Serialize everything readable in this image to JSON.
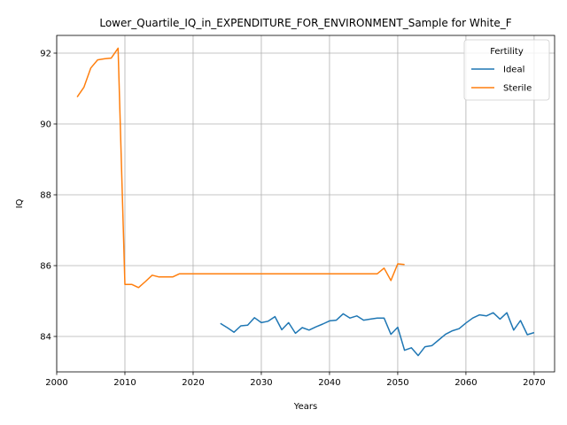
{
  "chart_data": {
    "type": "line",
    "title": "Lower_Quartile_IQ_in_EXPENDITURE_FOR_ENVIRONMENT_Sample for White_F",
    "xlabel": "Years",
    "ylabel": "IQ",
    "xlim": [
      2000,
      2073
    ],
    "ylim": [
      83.0,
      92.5
    ],
    "xticks": [
      2000,
      2010,
      2020,
      2030,
      2040,
      2050,
      2060,
      2070
    ],
    "yticks": [
      84,
      86,
      88,
      90,
      92
    ],
    "grid": true,
    "legend": {
      "title": "Fertility",
      "placement": "top-right"
    },
    "series": [
      {
        "name": "Ideal",
        "color": "#1f77b4",
        "x": [
          2024,
          2025,
          2026,
          2027,
          2028,
          2029,
          2030,
          2031,
          2032,
          2033,
          2034,
          2035,
          2036,
          2037,
          2038,
          2039,
          2040,
          2041,
          2042,
          2043,
          2044,
          2045,
          2046,
          2047,
          2048,
          2049,
          2050,
          2051,
          2052,
          2053,
          2054,
          2055,
          2056,
          2057,
          2058,
          2059,
          2060,
          2061,
          2062,
          2063,
          2064,
          2065,
          2066,
          2067,
          2068,
          2069,
          2070
        ],
        "y": [
          84.37,
          84.25,
          84.12,
          84.3,
          84.32,
          84.53,
          84.39,
          84.43,
          84.56,
          84.19,
          84.39,
          84.09,
          84.25,
          84.18,
          84.27,
          84.35,
          84.44,
          84.46,
          84.64,
          84.52,
          84.58,
          84.46,
          84.49,
          84.52,
          84.52,
          84.06,
          84.26,
          83.61,
          83.68,
          83.46,
          83.71,
          83.74,
          83.9,
          84.06,
          84.16,
          84.22,
          84.38,
          84.52,
          84.61,
          84.58,
          84.67,
          84.49,
          84.67,
          84.18,
          84.45,
          84.05,
          84.11
        ]
      },
      {
        "name": "Sterile",
        "color": "#ff7f0e",
        "x": [
          2003,
          2004,
          2005,
          2006,
          2007,
          2008,
          2009,
          2010,
          2011,
          2012,
          2013,
          2014,
          2015,
          2016,
          2017,
          2018,
          2019,
          2020,
          2021,
          2022,
          2023,
          2024,
          2025,
          2026,
          2027,
          2028,
          2029,
          2030,
          2031,
          2032,
          2033,
          2034,
          2035,
          2036,
          2037,
          2038,
          2039,
          2040,
          2041,
          2042,
          2043,
          2044,
          2045,
          2046,
          2047,
          2048,
          2049,
          2050,
          2051
        ],
        "y": [
          90.76,
          91.04,
          91.58,
          91.81,
          91.84,
          91.86,
          92.14,
          85.47,
          85.47,
          85.38,
          85.55,
          85.73,
          85.68,
          85.68,
          85.68,
          85.77,
          85.77,
          85.77,
          85.77,
          85.77,
          85.77,
          85.77,
          85.77,
          85.77,
          85.77,
          85.77,
          85.77,
          85.77,
          85.77,
          85.77,
          85.77,
          85.77,
          85.77,
          85.77,
          85.77,
          85.77,
          85.77,
          85.77,
          85.77,
          85.77,
          85.77,
          85.77,
          85.77,
          85.77,
          85.77,
          85.93,
          85.58,
          86.05,
          86.03
        ]
      }
    ]
  }
}
